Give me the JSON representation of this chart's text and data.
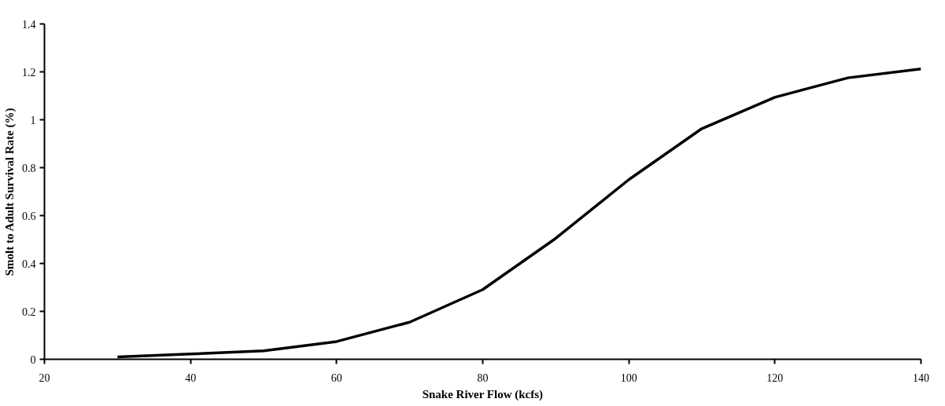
{
  "chart_data": {
    "type": "line",
    "xlabel": "Snake River Flow (kcfs)",
    "ylabel": "Smolt to Adult Survival Rate (%)",
    "x": [
      30,
      40,
      50,
      60,
      70,
      80,
      90,
      100,
      110,
      120,
      130,
      140
    ],
    "series": [
      {
        "color": "#000000",
        "values": [
          0.01,
          0.022,
          0.035,
          0.074,
          0.155,
          0.291,
          0.505,
          0.75,
          0.963,
          1.094,
          1.175,
          1.212
        ]
      }
    ],
    "xlim": [
      20,
      140
    ],
    "xticks": [
      20,
      40,
      60,
      80,
      100,
      120,
      140
    ],
    "ylim": [
      0,
      1.4
    ],
    "yticks": [
      0,
      0.2,
      0.4,
      0.6,
      0.8,
      1,
      1.2,
      1.4
    ],
    "marker": "none",
    "line_style": "solid"
  }
}
